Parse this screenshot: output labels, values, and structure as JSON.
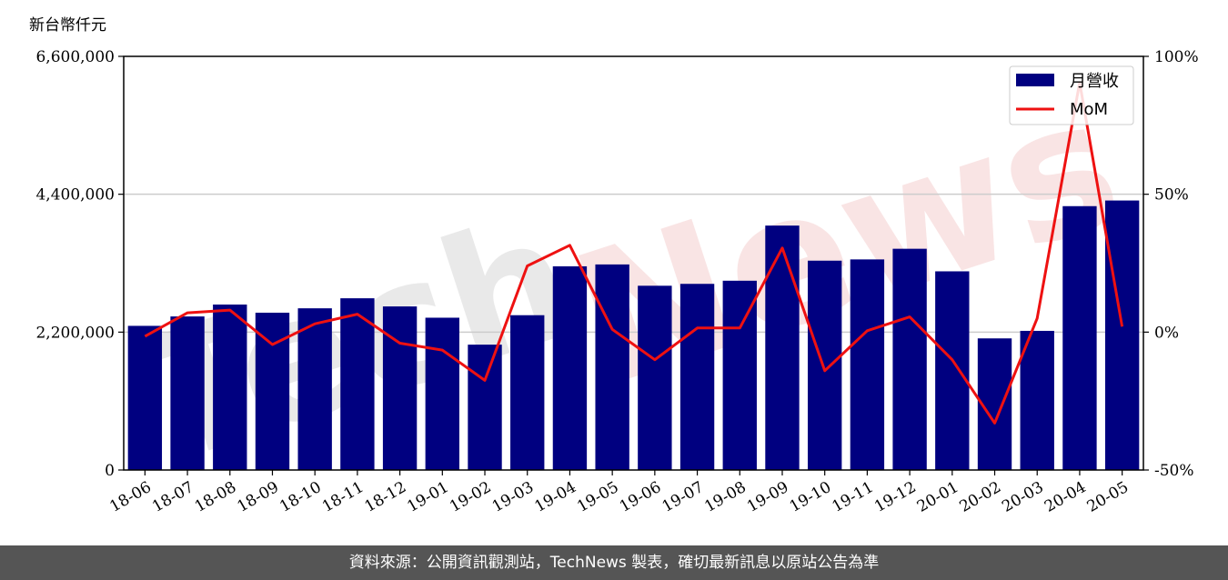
{
  "colors": {
    "bar": "#000080",
    "line": "#ee1111",
    "grid": "#cccccc",
    "footer_bg": "#555555",
    "watermark_gray": "#cfcfcf",
    "watermark_red": "#f2c4c4"
  },
  "watermark": {
    "tech": "Tech",
    "news": "News"
  },
  "footer": {
    "text": "資料來源：公開資訊觀測站，TechNews 製表，確切最新訊息以原站公告為準"
  },
  "chart_data": {
    "type": "bar",
    "unit_label": "新台幣仟元",
    "categories": [
      "18-06",
      "18-07",
      "18-08",
      "18-09",
      "18-10",
      "18-11",
      "18-12",
      "19-01",
      "19-02",
      "19-03",
      "19-04",
      "19-05",
      "19-06",
      "19-07",
      "19-08",
      "19-09",
      "19-10",
      "19-11",
      "19-12",
      "20-01",
      "20-02",
      "20-03",
      "20-04",
      "20-05"
    ],
    "series": [
      {
        "name": "月營收",
        "axis": "left",
        "type": "bar",
        "values": [
          2300000,
          2450000,
          2640000,
          2510000,
          2580000,
          2740000,
          2610000,
          2430000,
          2000000,
          2470000,
          3250000,
          3280000,
          2940000,
          2970000,
          3020000,
          3900000,
          3340000,
          3360000,
          3530000,
          3170000,
          2100000,
          2220000,
          4210000,
          4300000
        ]
      },
      {
        "name": "MoM",
        "axis": "right",
        "type": "line",
        "values": [
          -1.5,
          7.0,
          8.0,
          -4.5,
          3.0,
          6.5,
          -4.0,
          -6.5,
          -17.5,
          24.0,
          31.5,
          1.0,
          -10.0,
          1.5,
          1.5,
          30.5,
          -14.0,
          0.5,
          5.5,
          -10.0,
          -33.0,
          5.0,
          90.5,
          2.0
        ]
      }
    ],
    "y_left": {
      "lim": [
        0,
        6600000
      ],
      "ticks": [
        0,
        2200000,
        4400000,
        6600000
      ],
      "tick_labels": [
        "0",
        "2,200,000",
        "4,400,000",
        "6,600,000"
      ]
    },
    "y_right": {
      "lim": [
        -50,
        100
      ],
      "ticks": [
        -50,
        0,
        50,
        100
      ],
      "tick_labels": [
        "-50%",
        "0%",
        "50%",
        "100%"
      ]
    },
    "grid": true,
    "legend_position": "top-right"
  }
}
